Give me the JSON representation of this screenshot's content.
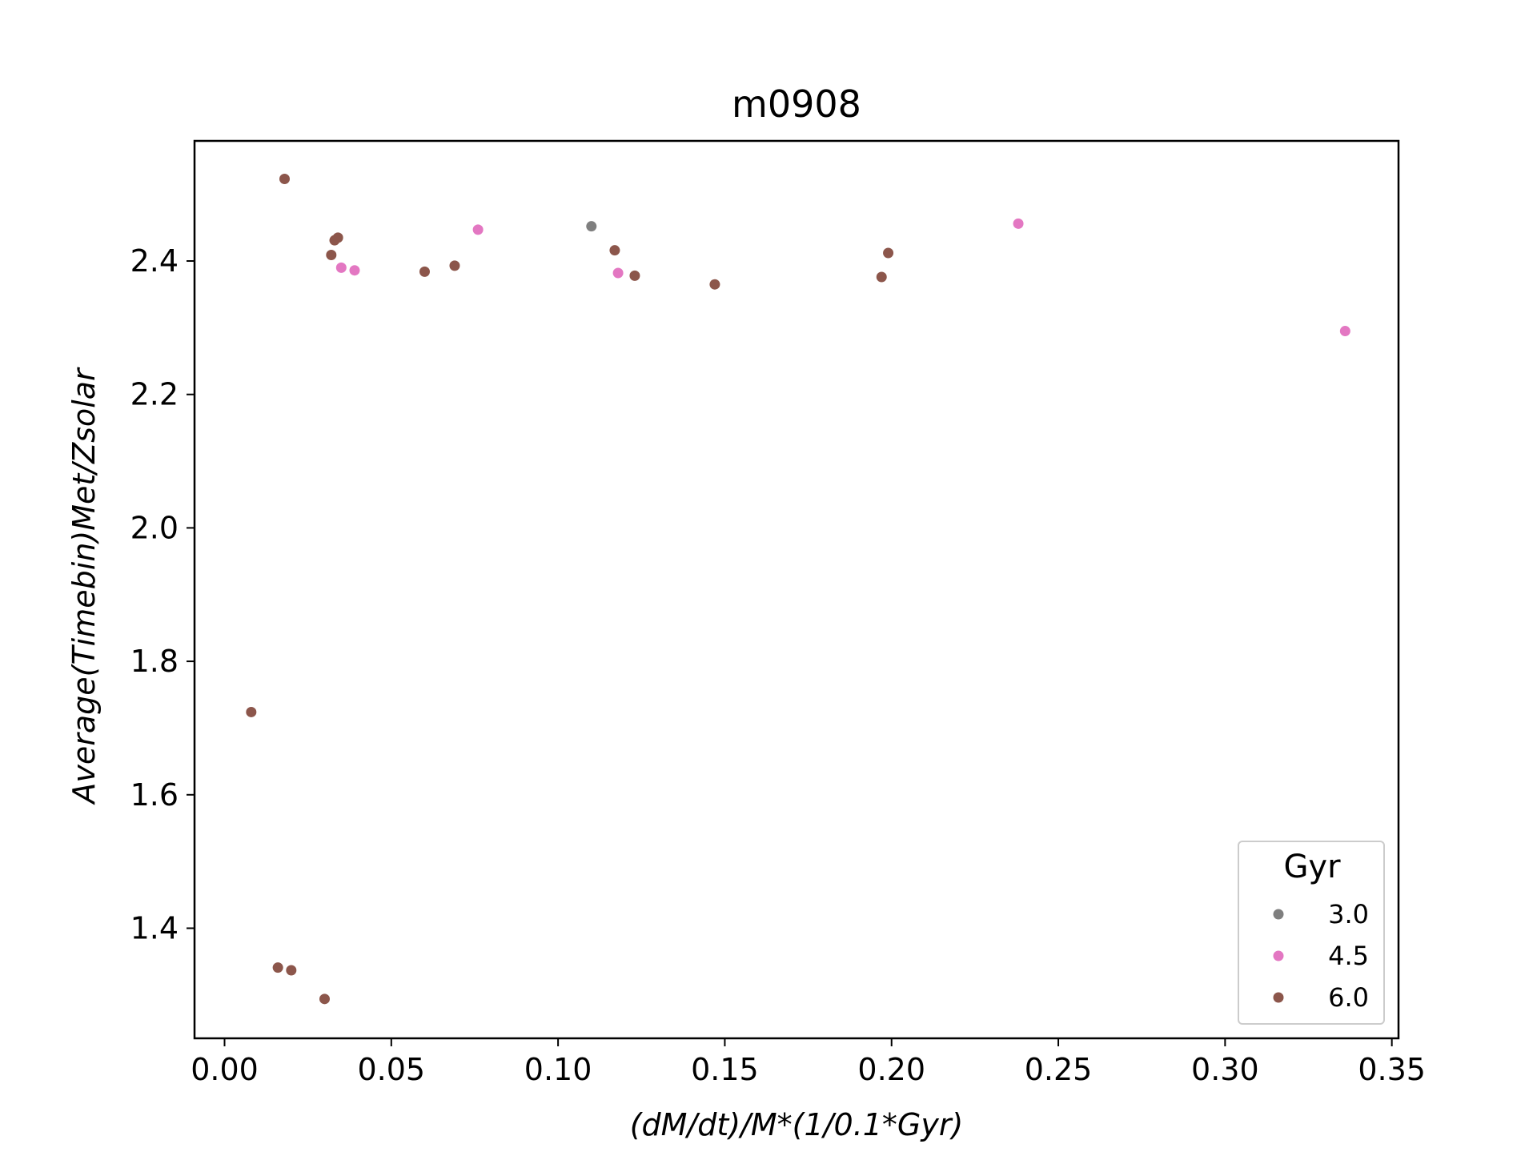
{
  "chart_data": {
    "type": "scatter",
    "title": "m0908",
    "xlabel": "(dM/dt)/M*(1/0.1*Gyr)",
    "ylabel": "Average(Timebin)Met/Zsolar",
    "xlim": [
      -0.009,
      0.352
    ],
    "ylim": [
      1.235,
      2.58
    ],
    "xticks": [
      "0.00",
      "0.05",
      "0.10",
      "0.15",
      "0.20",
      "0.25",
      "0.30",
      "0.35"
    ],
    "yticks": [
      "1.4",
      "1.6",
      "1.8",
      "2.0",
      "2.2",
      "2.4"
    ],
    "grid": false,
    "legend": {
      "title": "Gyr",
      "position": "lower right"
    },
    "series": [
      {
        "name": "3.0",
        "color": "#7f7f7f",
        "points": [
          {
            "x": 0.11,
            "y": 2.452
          }
        ]
      },
      {
        "name": "4.5",
        "color": "#e377c2",
        "points": [
          {
            "x": 0.035,
            "y": 2.39
          },
          {
            "x": 0.039,
            "y": 2.386
          },
          {
            "x": 0.076,
            "y": 2.447
          },
          {
            "x": 0.118,
            "y": 2.382
          },
          {
            "x": 0.238,
            "y": 2.456
          },
          {
            "x": 0.336,
            "y": 2.295
          }
        ]
      },
      {
        "name": "6.0",
        "color": "#8c564b",
        "points": [
          {
            "x": 0.008,
            "y": 1.724
          },
          {
            "x": 0.016,
            "y": 1.341
          },
          {
            "x": 0.018,
            "y": 2.523
          },
          {
            "x": 0.02,
            "y": 1.337
          },
          {
            "x": 0.03,
            "y": 1.294
          },
          {
            "x": 0.032,
            "y": 2.409
          },
          {
            "x": 0.033,
            "y": 2.431
          },
          {
            "x": 0.034,
            "y": 2.435
          },
          {
            "x": 0.06,
            "y": 2.384
          },
          {
            "x": 0.069,
            "y": 2.393
          },
          {
            "x": 0.117,
            "y": 2.416
          },
          {
            "x": 0.123,
            "y": 2.378
          },
          {
            "x": 0.147,
            "y": 2.365
          },
          {
            "x": 0.197,
            "y": 2.376
          },
          {
            "x": 0.199,
            "y": 2.412
          }
        ]
      }
    ]
  }
}
